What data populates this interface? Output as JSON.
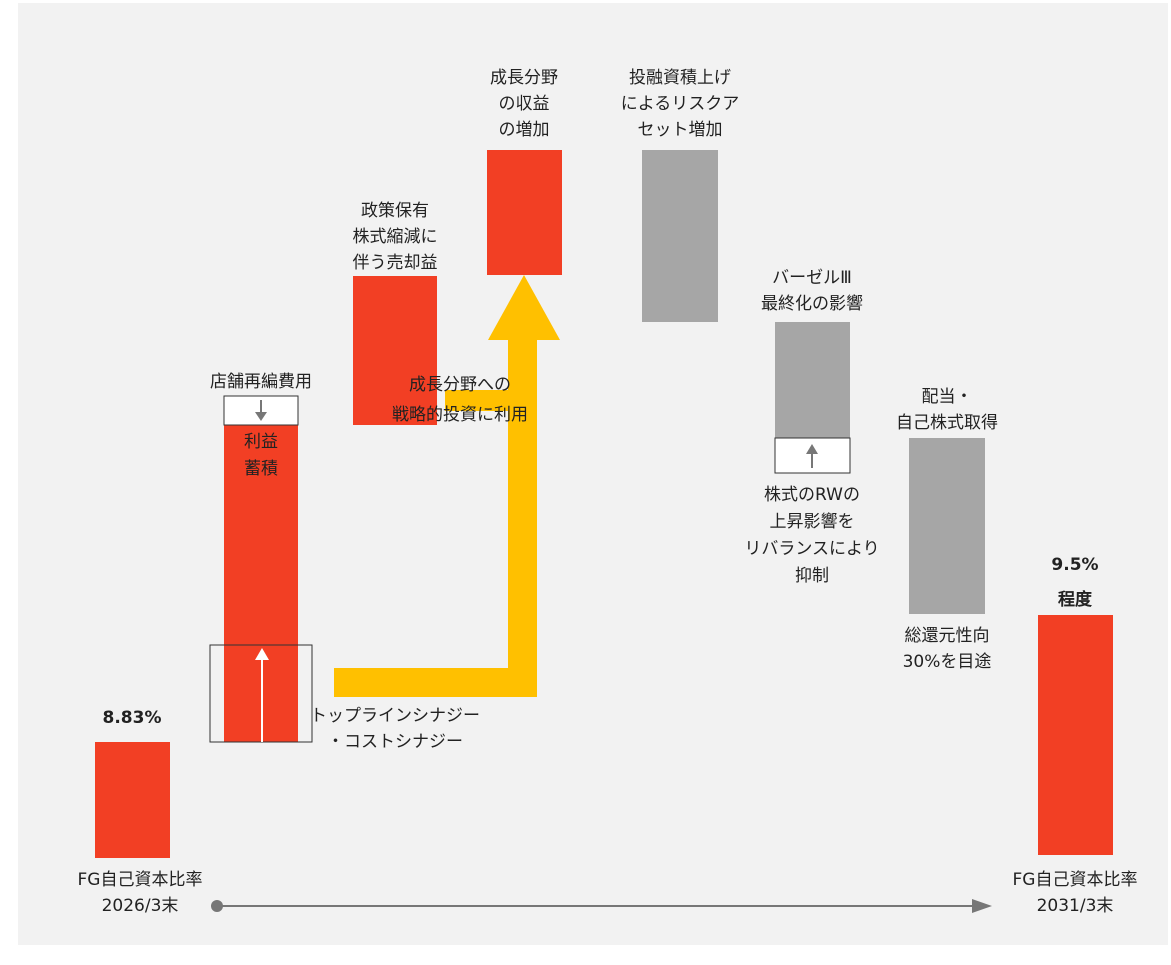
{
  "start": {
    "value_label": "8.83%",
    "caption": [
      "FG自己資本比率",
      "2026/3末"
    ]
  },
  "profit": {
    "inner": [
      "利益",
      "蓄積"
    ],
    "cost": [
      "店舗再編費用"
    ],
    "synergy": [
      "トップラインシナジー",
      "・コストシナジー"
    ]
  },
  "sale": {
    "caption": [
      "政策保有",
      "株式縮減に",
      "伴う売却益"
    ]
  },
  "growth": {
    "caption": [
      "成長分野",
      "の収益",
      "の増加"
    ]
  },
  "strategic": {
    "caption": [
      "成長分野への",
      "戦略的投資に利用"
    ]
  },
  "risk_asset": {
    "caption": [
      "投融資積上げ",
      "によるリスクア",
      "セット増加"
    ]
  },
  "basel": {
    "caption": [
      "バーゼルⅢ",
      "最終化の影響"
    ],
    "offset": [
      "株式のRWの",
      "上昇影響を",
      "リバランスにより",
      "抑制"
    ]
  },
  "payout": {
    "caption": [
      "配当・",
      "自己株式取得"
    ],
    "note": [
      "総還元性向",
      "30%を目途"
    ]
  },
  "end": {
    "value_label": [
      "9.5%",
      "程度"
    ],
    "caption": [
      "FG自己資本比率",
      "2031/3末"
    ]
  }
}
